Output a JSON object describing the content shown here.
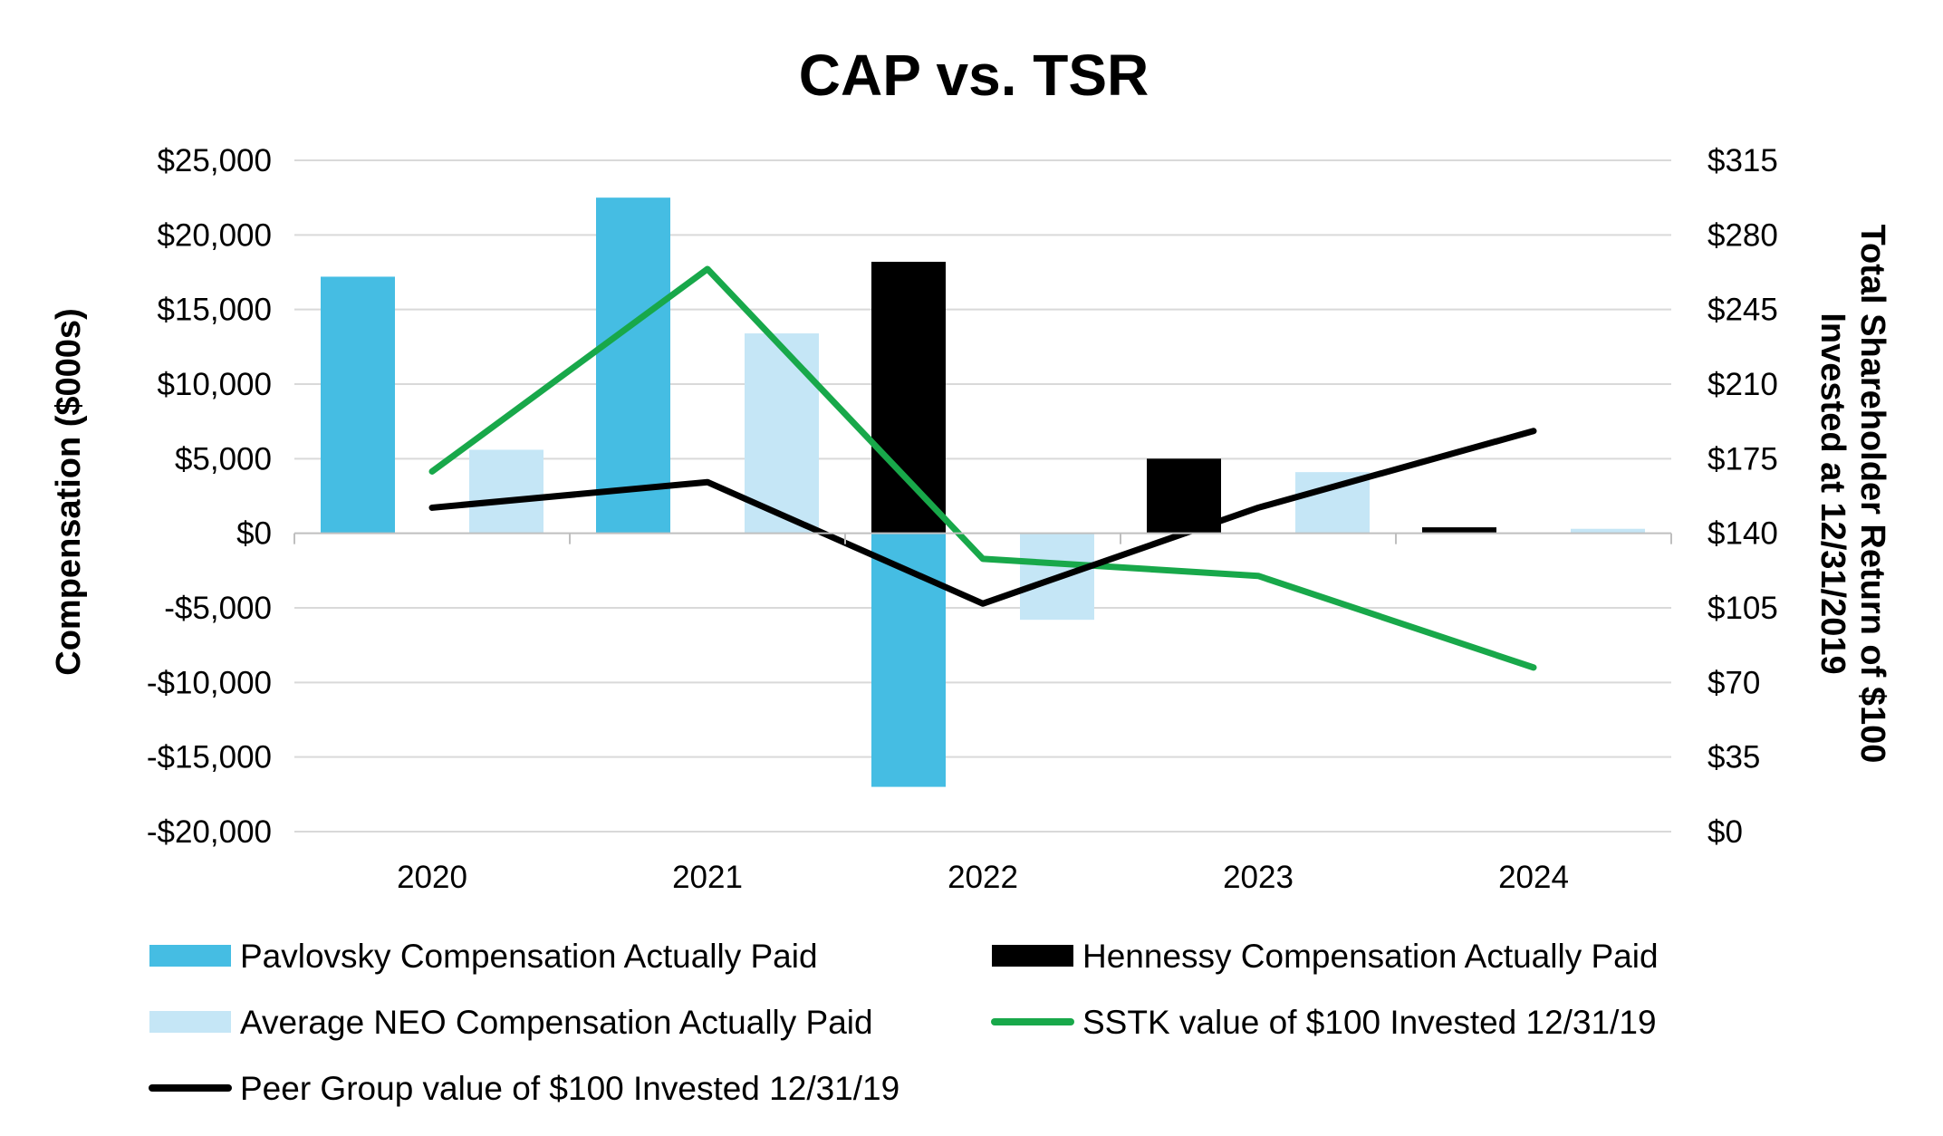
{
  "chart_data": {
    "type": "bar",
    "title": "CAP vs. TSR",
    "xlabel": "",
    "ylabel": "Compensation ($000s)",
    "y2label_line1": "Total Shareholder Return of $100",
    "y2label_line2": "Invested at 12/31/2019",
    "categories": [
      "2020",
      "2021",
      "2022",
      "2023",
      "2024"
    ],
    "ylim": [
      -20000,
      25000
    ],
    "y_ticks": [
      25000,
      20000,
      15000,
      10000,
      5000,
      0,
      -5000,
      -10000,
      -15000,
      -20000
    ],
    "y_tick_labels": [
      "$25,000",
      "$20,000",
      "$15,000",
      "$10,000",
      "$5,000",
      "$0",
      "-$5,000",
      "-$10,000",
      "-$15,000",
      "-$20,000"
    ],
    "y2lim": [
      0,
      315
    ],
    "y2_ticks": [
      315,
      280,
      245,
      210,
      175,
      140,
      105,
      70,
      35,
      0
    ],
    "y2_tick_labels": [
      "$315",
      "$280",
      "$245",
      "$210",
      "$175",
      "$140",
      "$105",
      "$70",
      "$35",
      "$0"
    ],
    "bar_series": [
      {
        "name": "Pavlovsky Compensation Actually Paid",
        "color": "#45BDE3",
        "values": [
          17200,
          22500,
          -17000,
          null,
          null
        ]
      },
      {
        "name": "Hennessy Compensation Actually Paid",
        "color": "#000000",
        "values": [
          null,
          null,
          18200,
          5000,
          400
        ]
      },
      {
        "name": "Average NEO Compensation Actually Paid",
        "color": "#C5E6F6",
        "values": [
          5600,
          13400,
          -5800,
          4100,
          300
        ]
      }
    ],
    "line_series": [
      {
        "name": "SSTK value of $100 Invested 12/31/19",
        "color": "#18A84A",
        "axis": "right",
        "values": [
          169,
          264,
          128,
          120,
          77
        ]
      },
      {
        "name": "Peer Group value of $100 Invested 12/31/19",
        "color": "#000000",
        "axis": "right",
        "values": [
          152,
          164,
          107,
          152,
          188
        ]
      }
    ],
    "legend": {
      "position": "bottom",
      "entries": [
        {
          "label": "Pavlovsky Compensation Actually Paid",
          "kind": "bar",
          "color": "#45BDE3"
        },
        {
          "label": "Hennessy Compensation Actually Paid",
          "kind": "bar",
          "color": "#000000"
        },
        {
          "label": "Average NEO Compensation Actually Paid",
          "kind": "bar",
          "color": "#C5E6F6"
        },
        {
          "label": "SSTK value of $100 Invested 12/31/19",
          "kind": "line",
          "color": "#18A84A"
        },
        {
          "label": "Peer Group value of $100 Invested 12/31/19",
          "kind": "line",
          "color": "#000000"
        }
      ]
    },
    "grid": true
  }
}
